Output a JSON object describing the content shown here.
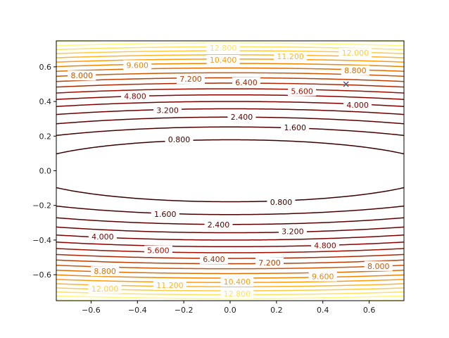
{
  "chart_data": {
    "type": "contour",
    "title": "",
    "xlabel": "",
    "ylabel": "",
    "xlim": [
      -0.75,
      0.75
    ],
    "ylim": [
      -0.75,
      0.75
    ],
    "grid": false,
    "function": "z = x^2 + 25*y^2",
    "levels": [
      0.8,
      1.6,
      2.4,
      3.2,
      4.0,
      4.8,
      5.6,
      6.4,
      7.2,
      8.0,
      8.8,
      9.6,
      10.4,
      11.2,
      12.0,
      12.8,
      13.6,
      14.4
    ],
    "level_labels": [
      "0.800",
      "1.600",
      "2.400",
      "3.200",
      "4.000",
      "4.800",
      "5.600",
      "6.400",
      "7.200",
      "8.000",
      "8.800",
      "9.600",
      "10.400",
      "11.200",
      "12.000",
      "12.800"
    ],
    "x_ticks": [
      "−0.6",
      "−0.4",
      "−0.2",
      "0.0",
      "0.2",
      "0.4",
      "0.6"
    ],
    "x_tick_values": [
      -0.6,
      -0.4,
      -0.2,
      0.0,
      0.2,
      0.4,
      0.6
    ],
    "y_ticks": [
      "−0.6",
      "−0.4",
      "−0.2",
      "0.0",
      "0.2",
      "0.4",
      "0.6"
    ],
    "y_tick_values": [
      -0.6,
      -0.4,
      -0.2,
      0.0,
      0.2,
      0.4,
      0.6
    ],
    "marker": {
      "x": 0.5,
      "y": 0.5,
      "symbol": "x",
      "color": "#555577"
    },
    "colormap": "afmhot",
    "label_positions": [
      {
        "level": 0.8,
        "x": -0.22,
        "y": 0.18
      },
      {
        "level": 0.8,
        "x": 0.22,
        "y": -0.18
      },
      {
        "level": 1.6,
        "x": 0.28,
        "y": 0.25
      },
      {
        "level": 1.6,
        "x": -0.28,
        "y": -0.25
      },
      {
        "level": 2.4,
        "x": 0.05,
        "y": 0.31
      },
      {
        "level": 2.4,
        "x": -0.05,
        "y": -0.31
      },
      {
        "level": 3.2,
        "x": -0.27,
        "y": 0.35
      },
      {
        "level": 3.2,
        "x": 0.27,
        "y": -0.35
      },
      {
        "level": 4.0,
        "x": 0.55,
        "y": 0.38
      },
      {
        "level": 4.0,
        "x": -0.55,
        "y": -0.38
      },
      {
        "level": 4.8,
        "x": -0.41,
        "y": 0.43
      },
      {
        "level": 4.8,
        "x": 0.41,
        "y": -0.43
      },
      {
        "level": 5.6,
        "x": 0.31,
        "y": 0.46
      },
      {
        "level": 5.6,
        "x": -0.31,
        "y": -0.46
      },
      {
        "level": 6.4,
        "x": 0.07,
        "y": 0.51
      },
      {
        "level": 6.4,
        "x": -0.07,
        "y": -0.51
      },
      {
        "level": 7.2,
        "x": -0.17,
        "y": 0.53
      },
      {
        "level": 7.2,
        "x": 0.17,
        "y": -0.53
      },
      {
        "level": 8.0,
        "x": -0.64,
        "y": 0.55
      },
      {
        "level": 8.0,
        "x": 0.64,
        "y": -0.55
      },
      {
        "level": 8.8,
        "x": 0.54,
        "y": 0.58
      },
      {
        "level": 8.8,
        "x": -0.54,
        "y": -0.58
      },
      {
        "level": 9.6,
        "x": -0.4,
        "y": 0.61
      },
      {
        "level": 9.6,
        "x": 0.4,
        "y": -0.61
      },
      {
        "level": 10.4,
        "x": -0.03,
        "y": 0.64
      },
      {
        "level": 10.4,
        "x": 0.03,
        "y": -0.64
      },
      {
        "level": 11.2,
        "x": 0.26,
        "y": 0.66
      },
      {
        "level": 11.2,
        "x": -0.26,
        "y": -0.66
      },
      {
        "level": 12.0,
        "x": 0.54,
        "y": 0.68
      },
      {
        "level": 12.0,
        "x": -0.54,
        "y": -0.68
      },
      {
        "level": 12.8,
        "x": -0.03,
        "y": 0.71
      },
      {
        "level": 12.8,
        "x": 0.03,
        "y": -0.71
      }
    ]
  }
}
